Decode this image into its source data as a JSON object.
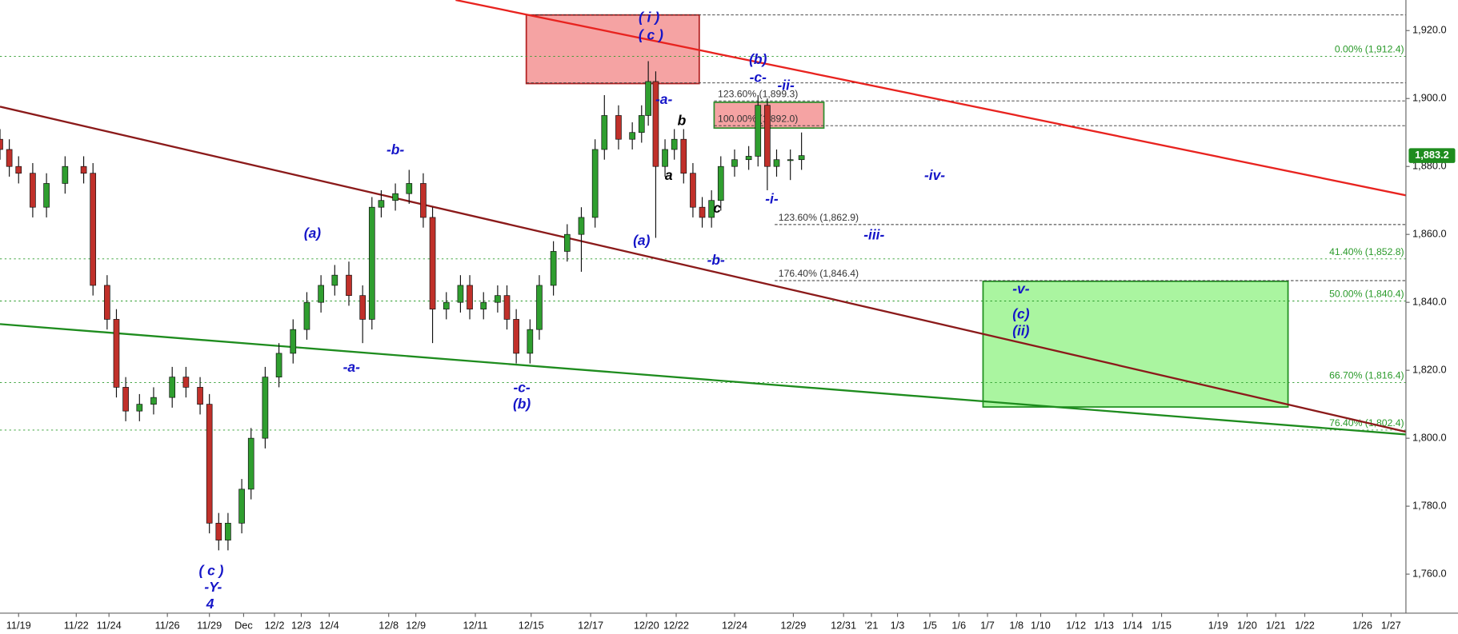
{
  "chart_data": {
    "type": "candlestick",
    "x": [
      0,
      2.5,
      5,
      8.8,
      12.5,
      17.5,
      22.5,
      25,
      28.8,
      31.3,
      33.8,
      37.5,
      41.3,
      46.3,
      50,
      53.8,
      56.3,
      58.8,
      61.3,
      65,
      67.5,
      71.3,
      75,
      78.8,
      82.5,
      86.3,
      90,
      93.8,
      97.5,
      100,
      102.5,
      106.3,
      110,
      113.8,
      116.3,
      120,
      123.8,
      126.3,
      130,
      133.8,
      136.3,
      138.8,
      142.5,
      145,
      148.8,
      152.5,
      156.3,
      160,
      162.5,
      166.3,
      170,
      172.5,
      174.3,
      176.3,
      178.8,
      181.3,
      183.8,
      186.3,
      188.8,
      191.3,
      193.8,
      197.5,
      201.3,
      203.8,
      206.3,
      208.8,
      212.5,
      215.5
    ],
    "open": [
      1888,
      1885,
      1880,
      1878,
      1868,
      1875,
      1880,
      1878,
      1845,
      1835,
      1815,
      1808,
      1810,
      1812,
      1818,
      1815,
      1810,
      1775,
      1770,
      1775,
      1785,
      1800,
      1818,
      1825,
      1832,
      1840,
      1845,
      1848,
      1842,
      1835,
      1868,
      1870,
      1872,
      1875,
      1865,
      1838,
      1840,
      1845,
      1838,
      1840,
      1842,
      1835,
      1825,
      1832,
      1845,
      1855,
      1860,
      1865,
      1885,
      1895,
      1888,
      1890,
      1895,
      1905,
      1880,
      1885,
      1888,
      1878,
      1868,
      1865,
      1870,
      1880,
      1882,
      1883,
      1898,
      1880,
      1882,
      1882
    ],
    "high": [
      1891,
      1888,
      1883,
      1881,
      1878,
      1883,
      1883,
      1881,
      1848,
      1838,
      1818,
      1813,
      1815,
      1821,
      1821,
      1818,
      1813,
      1778,
      1778,
      1788,
      1803,
      1821,
      1828,
      1835,
      1843,
      1848,
      1851,
      1852,
      1845,
      1871,
      1873,
      1875,
      1879,
      1878,
      1868,
      1843,
      1848,
      1848,
      1843,
      1845,
      1845,
      1838,
      1835,
      1848,
      1858,
      1863,
      1868,
      1888,
      1901,
      1898,
      1893,
      1898,
      1911,
      1908,
      1888,
      1891,
      1891,
      1881,
      1871,
      1873,
      1883,
      1885,
      1886,
      1901,
      1900,
      1885,
      1885,
      1890
    ],
    "low": [
      1882,
      1877,
      1875,
      1865,
      1865,
      1872,
      1875,
      1842,
      1832,
      1812,
      1805,
      1805,
      1807,
      1809,
      1812,
      1807,
      1772,
      1767,
      1767,
      1772,
      1782,
      1797,
      1815,
      1822,
      1829,
      1837,
      1842,
      1839,
      1828,
      1832,
      1865,
      1867,
      1869,
      1862,
      1828,
      1835,
      1837,
      1835,
      1835,
      1837,
      1832,
      1822,
      1822,
      1829,
      1842,
      1852,
      1849,
      1862,
      1882,
      1885,
      1885,
      1887,
      1892,
      1859,
      1877,
      1882,
      1875,
      1865,
      1862,
      1862,
      1867,
      1877,
      1879,
      1880,
      1873,
      1877,
      1876,
      1879
    ],
    "close": [
      1885,
      1880,
      1878,
      1868,
      1875,
      1880,
      1878,
      1845,
      1835,
      1815,
      1808,
      1810,
      1812,
      1818,
      1815,
      1810,
      1775,
      1770,
      1775,
      1785,
      1800,
      1818,
      1825,
      1832,
      1840,
      1845,
      1848,
      1842,
      1835,
      1868,
      1870,
      1872,
      1875,
      1865,
      1838,
      1840,
      1845,
      1838,
      1840,
      1842,
      1835,
      1825,
      1832,
      1845,
      1855,
      1860,
      1865,
      1885,
      1895,
      1888,
      1890,
      1895,
      1905,
      1880,
      1885,
      1888,
      1878,
      1868,
      1865,
      1870,
      1880,
      1882,
      1883,
      1898,
      1880,
      1882,
      1882,
      1883.2
    ],
    "up_color": "#2f9e2f",
    "down_color": "#c0302a",
    "xlim": [
      0,
      378
    ],
    "ylim": [
      1748.5,
      1929
    ],
    "yticks": [
      {
        "value": 1760,
        "label": "1,760.0"
      },
      {
        "value": 1780,
        "label": "1,780.0"
      },
      {
        "value": 1800,
        "label": "1,800.0"
      },
      {
        "value": 1820,
        "label": "1,820.0"
      },
      {
        "value": 1840,
        "label": "1,840.0"
      },
      {
        "value": 1860,
        "label": "1,860.0"
      },
      {
        "value": 1880,
        "label": "1,880.0"
      },
      {
        "value": 1900,
        "label": "1,900.0"
      },
      {
        "value": 1920,
        "label": "1,920.0"
      }
    ],
    "xticks": [
      {
        "value": 5,
        "label": "11/19"
      },
      {
        "value": 20.5,
        "label": "11/22"
      },
      {
        "value": 29.3,
        "label": "11/24"
      },
      {
        "value": 45,
        "label": "11/26"
      },
      {
        "value": 56.3,
        "label": "11/29"
      },
      {
        "value": 65.5,
        "label": "Dec"
      },
      {
        "value": 73.8,
        "label": "12/2"
      },
      {
        "value": 81,
        "label": "12/3"
      },
      {
        "value": 88.5,
        "label": "12/4"
      },
      {
        "value": 104.5,
        "label": "12/8"
      },
      {
        "value": 111.8,
        "label": "12/9"
      },
      {
        "value": 127.8,
        "label": "12/11"
      },
      {
        "value": 142.8,
        "label": "12/15"
      },
      {
        "value": 158.8,
        "label": "12/17"
      },
      {
        "value": 173.8,
        "label": "12/20"
      },
      {
        "value": 181.8,
        "label": "12/22"
      },
      {
        "value": 197.5,
        "label": "12/24"
      },
      {
        "value": 213.3,
        "label": "12/29"
      },
      {
        "value": 226.8,
        "label": "12/31"
      },
      {
        "value": 234.3,
        "label": "'21"
      },
      {
        "value": 241.3,
        "label": "1/3"
      },
      {
        "value": 250,
        "label": "1/5"
      },
      {
        "value": 257.8,
        "label": "1/6"
      },
      {
        "value": 265.5,
        "label": "1/7"
      },
      {
        "value": 273.3,
        "label": "1/8"
      },
      {
        "value": 279.8,
        "label": "1/10"
      },
      {
        "value": 289.3,
        "label": "1/12"
      },
      {
        "value": 296.8,
        "label": "1/13"
      },
      {
        "value": 304.5,
        "label": "1/14"
      },
      {
        "value": 312.3,
        "label": "1/15"
      },
      {
        "value": 327.5,
        "label": "1/19"
      },
      {
        "value": 335.3,
        "label": "1/20"
      },
      {
        "value": 343,
        "label": "1/21"
      },
      {
        "value": 350.8,
        "label": "1/22"
      },
      {
        "value": 366.3,
        "label": "1/26"
      },
      {
        "value": 374,
        "label": "1/27"
      }
    ],
    "zones": [
      {
        "x": [
          141.5,
          188
        ],
        "y": [
          1904.4,
          1924.6
        ],
        "color": "#f5a3a3",
        "stroke": "#b22222"
      },
      {
        "x": [
          192,
          221.5
        ],
        "y": [
          1891.3,
          1898.9
        ],
        "color": "#f5a3a3",
        "stroke": "#2f8f2f"
      },
      {
        "x": [
          264.3,
          346.3
        ],
        "y": [
          1809.2,
          1846.2
        ],
        "color": "#aaf5a0",
        "stroke": "#1f8f1f"
      }
    ],
    "trendlines": [
      {
        "x": [
          122.5,
          378
        ],
        "y": [
          1929,
          1871.5
        ],
        "color": "#e8231f"
      },
      {
        "x": [
          0,
          378
        ],
        "y": [
          1897.6,
          1801.9
        ],
        "color": "#8b1a1a"
      },
      {
        "x": [
          0,
          378
        ],
        "y": [
          1833.6,
          1801.1
        ],
        "color": "#1e8c1e"
      }
    ],
    "levels": [
      {
        "value": 1924.6,
        "start": 141.5,
        "color": "#333"
      },
      {
        "value": 1904.6,
        "start": 141.5,
        "color": "#333"
      },
      {
        "value": 1912.4,
        "start": 0,
        "color": "#2a9a2a",
        "label": "0.00% (1,912.4)"
      },
      {
        "value": 1899.3,
        "start": 192,
        "color": "#333",
        "label": "123.60% (1,899.3)"
      },
      {
        "value": 1892,
        "start": 192,
        "color": "#333",
        "label": "100.00% (1,892.0)"
      },
      {
        "value": 1862.9,
        "start": 208.3,
        "color": "#333",
        "label": "123.60% (1,862.9)"
      },
      {
        "value": 1852.8,
        "start": 0,
        "color": "#2a9a2a",
        "label": "41.40% (1,852.8)"
      },
      {
        "value": 1846.4,
        "start": 208.3,
        "color": "#333",
        "label": "176.40% (1,846.4)"
      },
      {
        "value": 1840.4,
        "start": 0,
        "color": "#2a9a2a",
        "label": "50.00% (1,840.4)"
      },
      {
        "value": 1816.4,
        "start": 0,
        "color": "#2a9a2a",
        "label": "66.70% (1,816.4)"
      },
      {
        "value": 1802.4,
        "start": 0,
        "color": "#2a9a2a",
        "label": "76.40% (1,802.4)"
      }
    ],
    "annotations": [
      {
        "text": "( i )",
        "x": 174.5,
        "y": 1923.6,
        "color": "#1515c8"
      },
      {
        "text": "( c )",
        "x": 175,
        "y": 1918.4,
        "color": "#1515c8"
      },
      {
        "text": "(b)",
        "x": 203.8,
        "y": 1911.2,
        "color": "#1515c8"
      },
      {
        "text": "-c-",
        "x": 203.8,
        "y": 1906,
        "color": "#1515c8"
      },
      {
        "text": "-ii-",
        "x": 211.3,
        "y": 1903.6,
        "color": "#1515c8"
      },
      {
        "text": "-a-",
        "x": 178.5,
        "y": 1899.5,
        "color": "#1515c8"
      },
      {
        "text": "b",
        "x": 183.3,
        "y": 1893.2,
        "color": "#000"
      },
      {
        "text": "a",
        "x": 179.8,
        "y": 1877.1,
        "color": "#000"
      },
      {
        "text": "c",
        "x": 192.8,
        "y": 1867.5,
        "color": "#000"
      },
      {
        "text": "-b-",
        "x": 192.5,
        "y": 1852.2,
        "color": "#1515c8"
      },
      {
        "text": "(a)",
        "x": 172.5,
        "y": 1857.9,
        "color": "#1515c8"
      },
      {
        "text": "-i-",
        "x": 207.5,
        "y": 1870.2,
        "color": "#1515c8"
      },
      {
        "text": "-iv-",
        "x": 251.3,
        "y": 1877.1,
        "color": "#1515c8"
      },
      {
        "text": "-iii-",
        "x": 235,
        "y": 1859.6,
        "color": "#1515c8"
      },
      {
        "text": "-v-",
        "x": 274.5,
        "y": 1843.7,
        "color": "#1515c8"
      },
      {
        "text": "(c)",
        "x": 274.5,
        "y": 1836.3,
        "color": "#1515c8"
      },
      {
        "text": "(ii)",
        "x": 274.5,
        "y": 1831.4,
        "color": "#1515c8"
      },
      {
        "text": "-b-",
        "x": 106.3,
        "y": 1884.7,
        "color": "#1515c8"
      },
      {
        "text": "(a)",
        "x": 84,
        "y": 1860.1,
        "color": "#1515c8"
      },
      {
        "text": "-a-",
        "x": 94.5,
        "y": 1820.7,
        "color": "#1515c8"
      },
      {
        "text": "-c-",
        "x": 140.3,
        "y": 1814.7,
        "color": "#1515c8"
      },
      {
        "text": "(b)",
        "x": 140.3,
        "y": 1809.8,
        "color": "#1515c8"
      },
      {
        "text": "( c )",
        "x": 56.8,
        "y": 1760.8,
        "color": "#1515c8"
      },
      {
        "text": "-Y-",
        "x": 57.3,
        "y": 1755.9,
        "color": "#1515c8"
      },
      {
        "text": "4",
        "x": 56.5,
        "y": 1751,
        "color": "#1515c8"
      }
    ],
    "last_price": {
      "value": 1883.2,
      "label": "1,883.2",
      "color": "#1e8c1e"
    }
  }
}
